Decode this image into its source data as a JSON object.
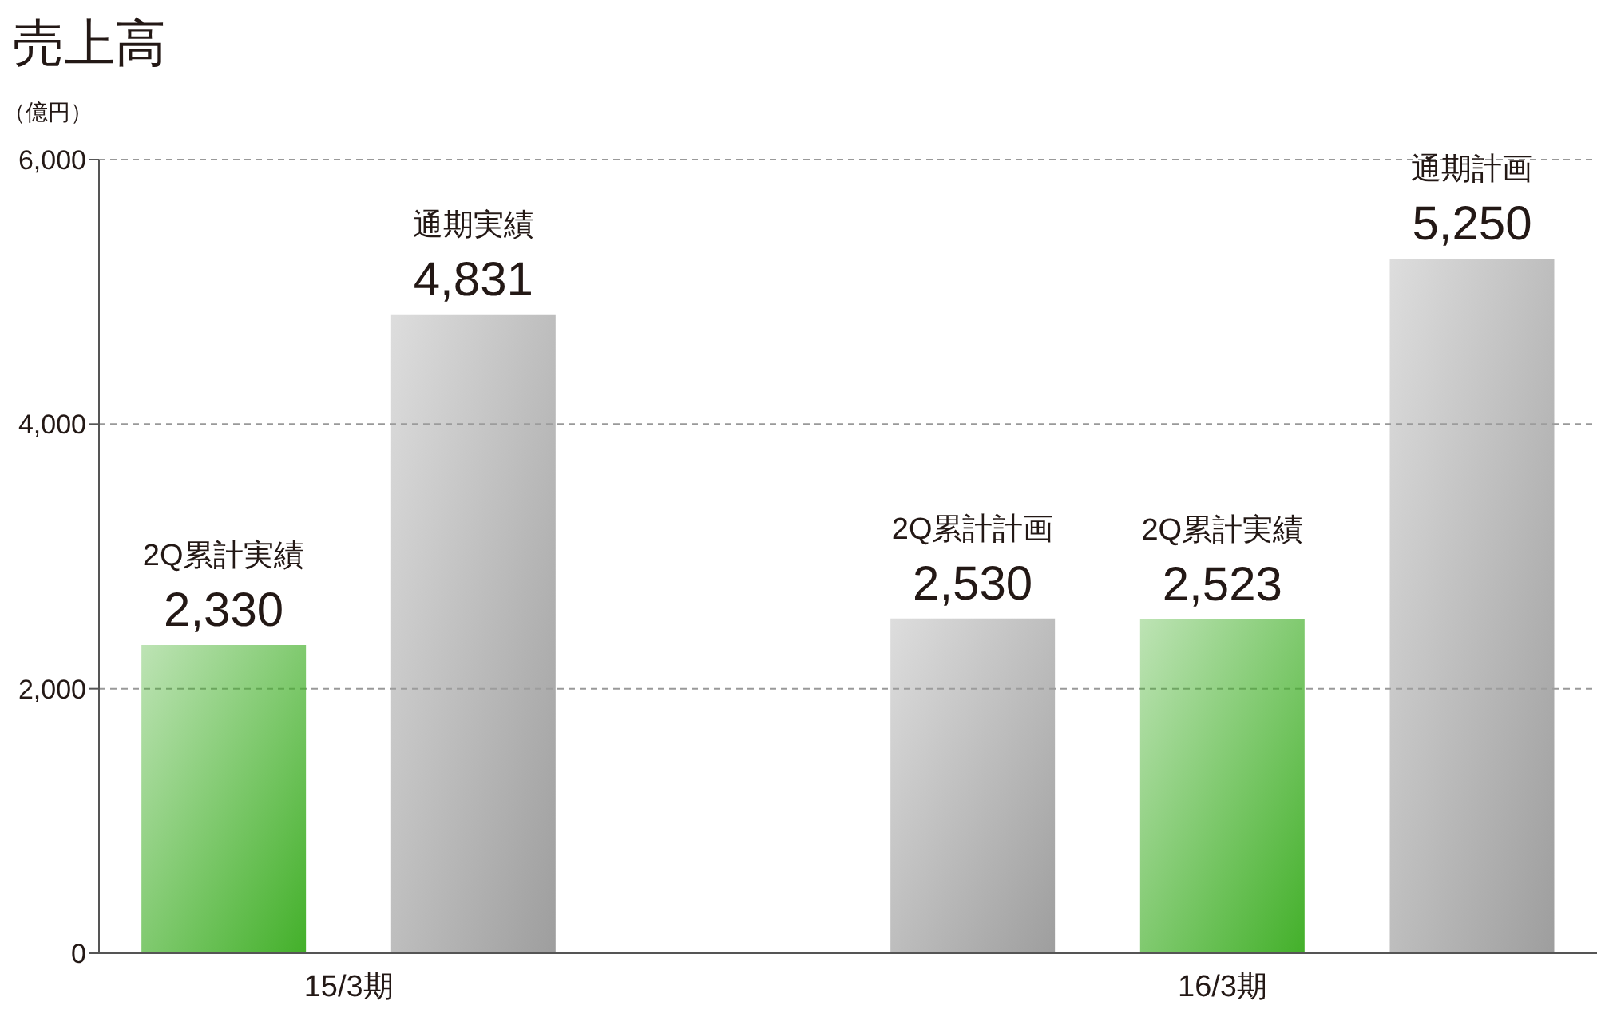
{
  "chart_data": {
    "type": "bar",
    "title": "売上高",
    "ylabel": "（億円）",
    "categories": [
      "2Q累計実績",
      "通期実績",
      null,
      "2Q累計計画",
      "2Q累計実績",
      "通期計画"
    ],
    "values": [
      2330,
      4831,
      null,
      2530,
      2523,
      5250
    ],
    "value_labels": [
      "2,330",
      "4,831",
      null,
      "2,530",
      "2,523",
      "5,250"
    ],
    "colors": [
      "#43b02a",
      "#9e9e9e",
      "#9e9e9e",
      "#9e9e9e",
      "#43b02a",
      "#9e9e9e"
    ],
    "ylim": [
      0,
      6000
    ],
    "yticks": [
      0,
      {
        "value": 2000,
        "label": "2,000"
      },
      {
        "value": 4000,
        "label": "4,000"
      },
      {
        "value": 6000,
        "label": "6,000"
      }
    ],
    "grid": "y",
    "annotations": [
      "15/3期",
      "16/3期"
    ]
  }
}
